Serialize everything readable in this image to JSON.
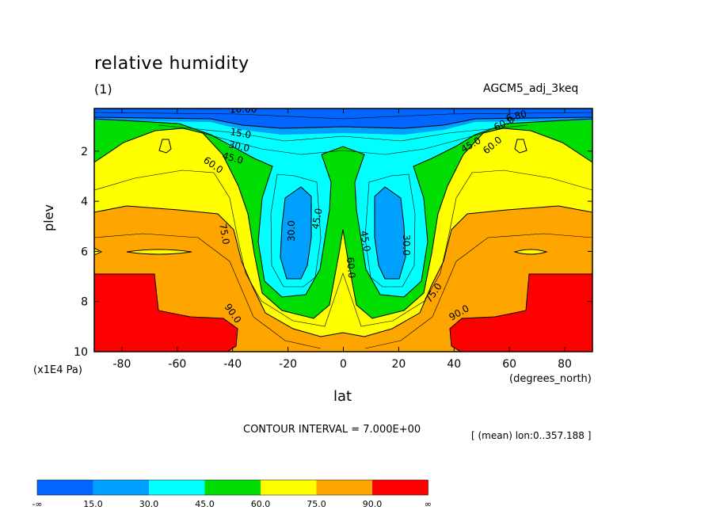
{
  "title": "relative humidity",
  "subtitle": "(1)",
  "dataset": "AGCM5_adj_3keq",
  "contour_interval": "CONTOUR INTERVAL = 7.000E+00",
  "mean_info": "[ (mean) lon:0..357.188 ]",
  "colors": {
    "below_15": "#0066ff",
    "15_30": "#00a0ff",
    "30_45": "#00ffff",
    "45_60": "#00dd00",
    "60_75": "#ffff00",
    "75_90": "#ffa500",
    "above_90": "#ff0000"
  },
  "chart_data": {
    "type": "contour",
    "title": "relative humidity",
    "xlabel": "lat",
    "xunit": "(degrees_north)",
    "ylabel": "plev",
    "yunit": "(x1E4 Pa)",
    "xlim": [
      -90,
      90
    ],
    "ylim": [
      10,
      0.3
    ],
    "x_ticks": [
      "-80",
      "-60",
      "-40",
      "-20",
      "0",
      "20",
      "40",
      "60",
      "80"
    ],
    "x_tick_values": [
      -80,
      -60,
      -40,
      -20,
      0,
      20,
      40,
      60,
      80
    ],
    "y_ticks": [
      "2",
      "4",
      "6",
      "8",
      "10"
    ],
    "y_tick_values": [
      2,
      4,
      6,
      8,
      10
    ],
    "contour_labels": [
      "10.00",
      "15.0",
      "30.0",
      "45.0",
      "60.0",
      "75.0",
      "90.0",
      "30.0",
      "45.0",
      "60.0",
      "75.0",
      "90.0",
      "30.0",
      "45.0",
      "60.0",
      "45.0",
      "60.0",
      "90.0",
      "75.0",
      "30.0",
      "45.0",
      "6.80"
    ],
    "legend": {
      "boundaries": [
        "-∞",
        "15.0",
        "30.0",
        "45.0",
        "60.0",
        "75.0",
        "90.0",
        "∞"
      ],
      "colors": [
        "#0066ff",
        "#00a0ff",
        "#00ffff",
        "#00dd00",
        "#ffff00",
        "#ffa500",
        "#ff0000"
      ]
    }
  }
}
